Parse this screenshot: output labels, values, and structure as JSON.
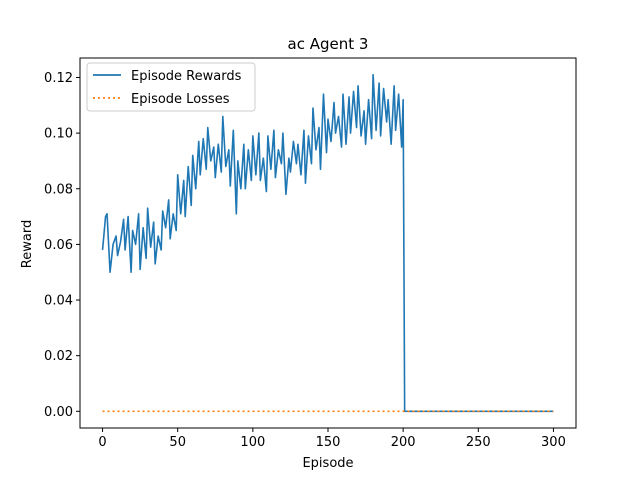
{
  "chart_data": {
    "type": "line",
    "title": "ac Agent 3",
    "xlabel": "Episode",
    "ylabel": "Reward",
    "xlim": [
      -15,
      315
    ],
    "ylim": [
      -0.006,
      0.127
    ],
    "x_ticks": [
      0,
      50,
      100,
      150,
      200,
      250,
      300
    ],
    "y_ticks": [
      0.0,
      0.02,
      0.04,
      0.06,
      0.08,
      0.1,
      0.12
    ],
    "x_tick_labels": [
      "0",
      "50",
      "100",
      "150",
      "200",
      "250",
      "300"
    ],
    "y_tick_labels": [
      "0.00",
      "0.02",
      "0.04",
      "0.06",
      "0.08",
      "0.10",
      "0.12"
    ],
    "grid": false,
    "legend_position": "top-left",
    "series": [
      {
        "name": "Episode Rewards",
        "color": "#1f77b4",
        "style": "solid",
        "x": [
          0,
          2,
          3,
          5,
          7,
          9,
          10,
          12,
          14,
          15,
          17,
          19,
          20,
          22,
          24,
          25,
          27,
          29,
          30,
          32,
          34,
          35,
          37,
          39,
          40,
          42,
          44,
          45,
          47,
          49,
          50,
          52,
          54,
          55,
          57,
          59,
          60,
          62,
          64,
          65,
          67,
          69,
          70,
          72,
          74,
          75,
          77,
          79,
          80,
          82,
          84,
          85,
          87,
          89,
          90,
          92,
          94,
          95,
          97,
          99,
          100,
          102,
          104,
          105,
          107,
          109,
          110,
          112,
          114,
          115,
          117,
          119,
          120,
          122,
          124,
          125,
          127,
          129,
          130,
          132,
          134,
          135,
          137,
          139,
          140,
          142,
          144,
          145,
          147,
          149,
          150,
          152,
          154,
          155,
          157,
          159,
          160,
          162,
          164,
          165,
          167,
          169,
          170,
          172,
          174,
          175,
          177,
          179,
          180,
          182,
          184,
          185,
          187,
          189,
          190,
          192,
          194,
          195,
          197,
          199,
          200,
          201,
          250,
          300
        ],
        "y": [
          0.058,
          0.07,
          0.071,
          0.05,
          0.06,
          0.063,
          0.056,
          0.061,
          0.069,
          0.058,
          0.07,
          0.05,
          0.065,
          0.06,
          0.071,
          0.051,
          0.066,
          0.055,
          0.073,
          0.059,
          0.068,
          0.053,
          0.063,
          0.058,
          0.072,
          0.066,
          0.076,
          0.062,
          0.071,
          0.065,
          0.085,
          0.071,
          0.083,
          0.07,
          0.088,
          0.074,
          0.092,
          0.08,
          0.097,
          0.085,
          0.098,
          0.087,
          0.102,
          0.09,
          0.095,
          0.084,
          0.096,
          0.086,
          0.106,
          0.088,
          0.094,
          0.081,
          0.101,
          0.071,
          0.09,
          0.08,
          0.096,
          0.08,
          0.094,
          0.083,
          0.099,
          0.085,
          0.1,
          0.083,
          0.091,
          0.079,
          0.099,
          0.087,
          0.101,
          0.084,
          0.094,
          0.089,
          0.1,
          0.078,
          0.091,
          0.086,
          0.097,
          0.089,
          0.096,
          0.085,
          0.101,
          0.082,
          0.099,
          0.089,
          0.109,
          0.094,
          0.102,
          0.087,
          0.114,
          0.093,
          0.105,
          0.097,
          0.111,
          0.1,
          0.106,
          0.095,
          0.114,
          0.096,
          0.113,
          0.1,
          0.115,
          0.102,
          0.117,
          0.099,
          0.108,
          0.096,
          0.112,
          0.098,
          0.121,
          0.101,
          0.118,
          0.099,
          0.116,
          0.104,
          0.112,
          0.096,
          0.117,
          0.101,
          0.114,
          0.095,
          0.112,
          0.0,
          0.0,
          0.0
        ]
      },
      {
        "name": "Episode Losses",
        "color": "#ff7f0e",
        "style": "dotted",
        "x": [
          0,
          50,
          100,
          150,
          200,
          250,
          300
        ],
        "y": [
          0,
          0,
          0,
          0,
          0,
          0,
          0
        ]
      }
    ]
  }
}
